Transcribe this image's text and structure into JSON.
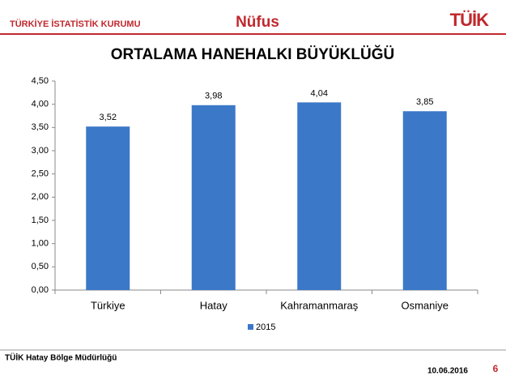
{
  "header": {
    "org": "TÜRKİYE İSTATİSTİK KURUMU",
    "section": "Nüfus",
    "logo": "TÜİK"
  },
  "chart_data": {
    "type": "bar",
    "title": "ORTALAMA HANEHALKI BÜYÜKLÜĞÜ",
    "categories": [
      "Türkiye",
      "Hatay",
      "Kahramanmaraş",
      "Osmaniye"
    ],
    "series": [
      {
        "name": "2015",
        "color": "#3b78c8",
        "values": [
          3.52,
          3.98,
          4.04,
          3.85
        ],
        "value_labels": [
          "3,52",
          "3,98",
          "4,04",
          "3,85"
        ]
      }
    ],
    "ylim": [
      0,
      4.5
    ],
    "yticks": [
      {
        "value": 0,
        "label": "0,00"
      },
      {
        "value": 0.5,
        "label": "0,50"
      },
      {
        "value": 1,
        "label": "1,00"
      },
      {
        "value": 1.5,
        "label": "1,50"
      },
      {
        "value": 2,
        "label": "2,00"
      },
      {
        "value": 2.5,
        "label": "2,50"
      },
      {
        "value": 3,
        "label": "3,00"
      },
      {
        "value": 3.5,
        "label": "3,50"
      },
      {
        "value": 4,
        "label": "4,00"
      },
      {
        "value": 4.5,
        "label": "4,50"
      }
    ],
    "grid": false,
    "legend": "bottom"
  },
  "footer": {
    "office": "TÜİK Hatay Bölge Müdürlüğü",
    "date": "10.06.2016",
    "page": "6"
  }
}
